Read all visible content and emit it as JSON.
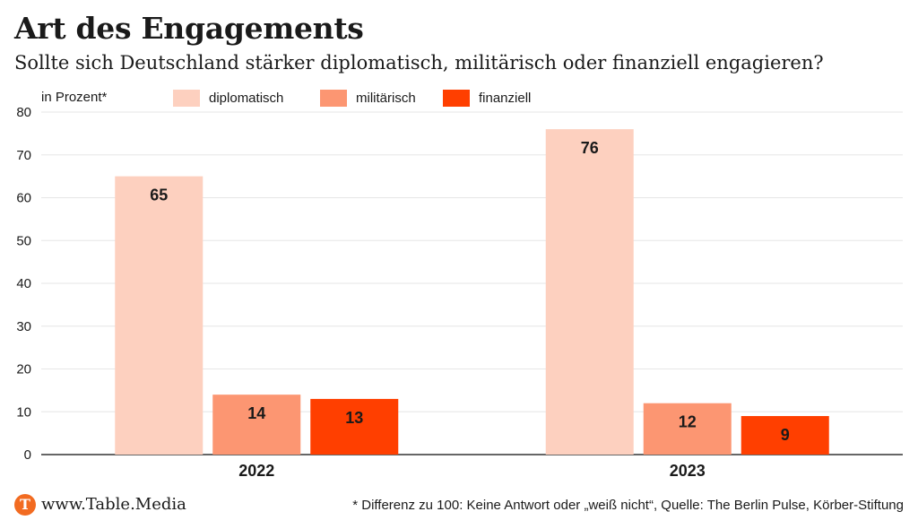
{
  "header": {
    "title": "Art des Engagements",
    "subtitle": "Sollte sich Deutschland stärker diplomatisch, militärisch oder finanziell engagieren?"
  },
  "chart_data": {
    "type": "bar",
    "unit_label": "in Prozent*",
    "categories": [
      "2022",
      "2023"
    ],
    "series": [
      {
        "name": "diplomatisch",
        "color": "#fdd0bf",
        "values": [
          65,
          76
        ]
      },
      {
        "name": "militärisch",
        "color": "#fc9672",
        "values": [
          14,
          12
        ]
      },
      {
        "name": "finanziell",
        "color": "#ff3f00",
        "values": [
          13,
          9
        ]
      }
    ],
    "ylim": [
      0,
      80
    ],
    "yticks": [
      0,
      10,
      20,
      30,
      40,
      50,
      60,
      70,
      80
    ],
    "grid": true,
    "legend_position": "top"
  },
  "footer": {
    "logo_letter": "T",
    "site": "www.Table.Media",
    "note": "* Differenz zu 100: Keine Antwort oder „weiß nicht“, Quelle: The Berlin Pulse, Körber-Stiftung"
  }
}
